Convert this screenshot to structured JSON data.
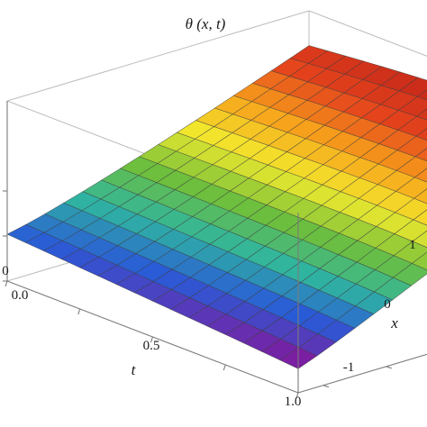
{
  "chart_data": {
    "type": "surface",
    "title": "θ (x, t)",
    "xlabel": "t",
    "ylabel": "x",
    "x_ticks": [
      "0.0",
      "0.5",
      "1.0"
    ],
    "y_ticks": [
      "-1",
      "0",
      "1"
    ],
    "z_ticks": [
      "0"
    ],
    "t_range": [
      0,
      1
    ],
    "x_range": [
      -1.2,
      1.2
    ],
    "description_values": {
      "t": [
        0,
        0.0625,
        0.125,
        0.1875,
        0.25,
        0.3125,
        0.375,
        0.4375,
        0.5,
        0.5625,
        0.625,
        0.6875,
        0.75,
        0.8125,
        0.875,
        0.9375,
        1
      ],
      "x": [
        -1.2,
        -1.05,
        -0.9,
        -0.75,
        -0.6,
        -0.45,
        -0.3,
        -0.15,
        0,
        0.15,
        0.3,
        0.45,
        0.6,
        0.75,
        0.9,
        1.05,
        1.2
      ]
    },
    "colormap": [
      "#7a1fa2",
      "#2a5bd7",
      "#2fb5a0",
      "#6fbf3a",
      "#f2ea2e",
      "#f7a21b",
      "#e4421c",
      "#c72a1a"
    ],
    "grid": false
  }
}
